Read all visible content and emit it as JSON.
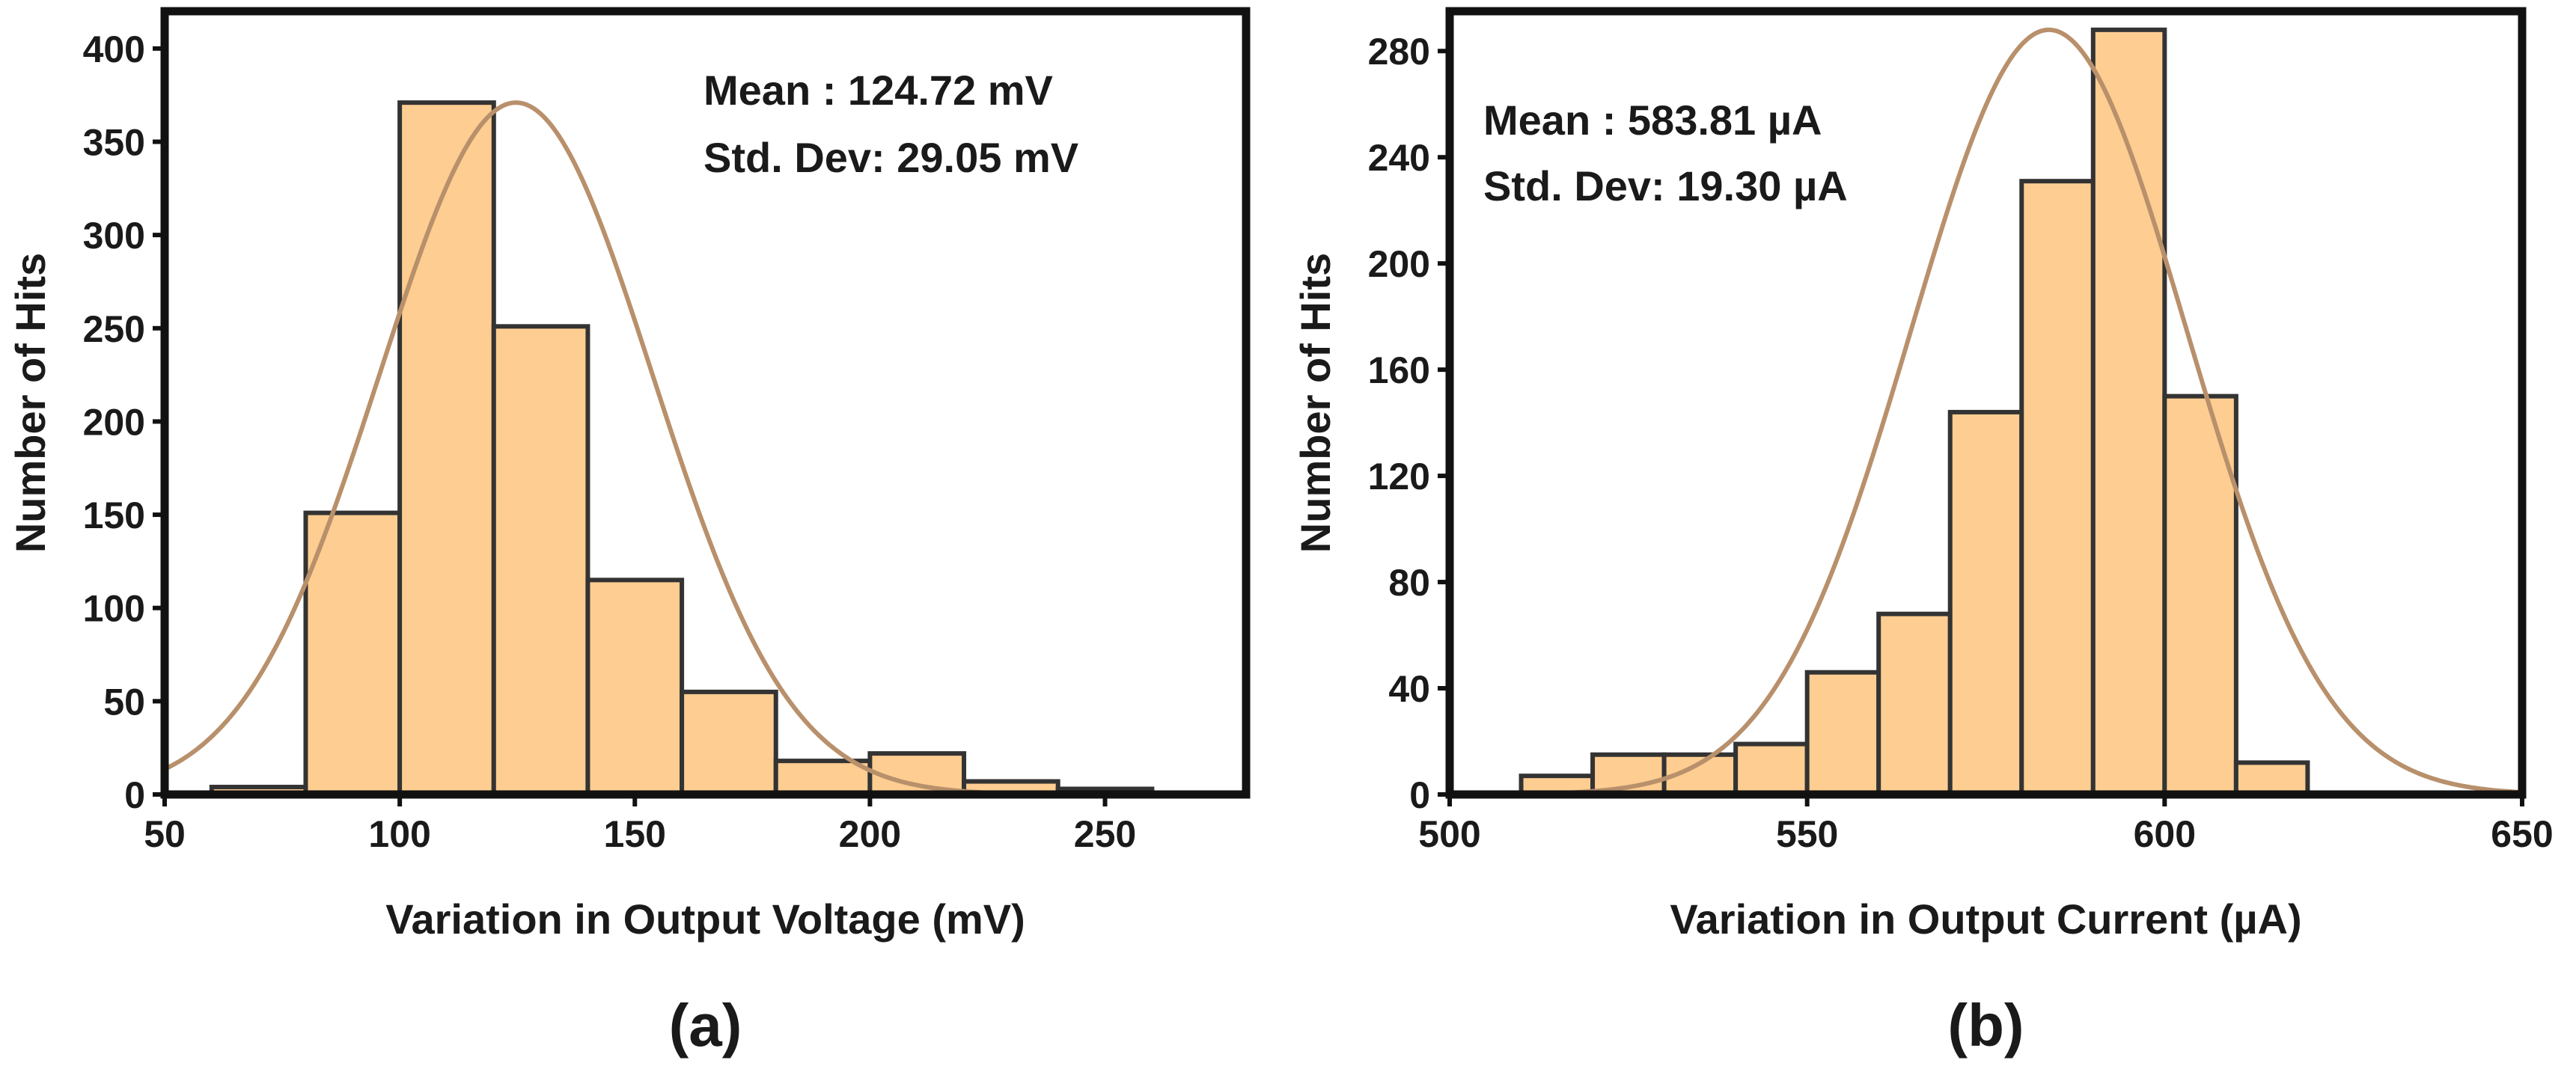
{
  "chart_data": [
    {
      "type": "histogram",
      "panel_label": "(a)",
      "xlabel": "Variation in Output Voltage (mV)",
      "ylabel": "Number of Hits",
      "xlim": [
        50,
        280
      ],
      "ylim": [
        0,
        420
      ],
      "xticks": [
        50,
        100,
        150,
        200,
        250
      ],
      "yticks": [
        0,
        50,
        100,
        150,
        200,
        250,
        300,
        350,
        400
      ],
      "bins": [
        {
          "start": 60,
          "end": 80,
          "count": 4
        },
        {
          "start": 80,
          "end": 100,
          "count": 151
        },
        {
          "start": 100,
          "end": 120,
          "count": 371
        },
        {
          "start": 120,
          "end": 140,
          "count": 251
        },
        {
          "start": 140,
          "end": 160,
          "count": 115
        },
        {
          "start": 160,
          "end": 180,
          "count": 55
        },
        {
          "start": 180,
          "end": 200,
          "count": 18
        },
        {
          "start": 200,
          "end": 220,
          "count": 22
        },
        {
          "start": 220,
          "end": 240,
          "count": 7
        },
        {
          "start": 240,
          "end": 260,
          "count": 3
        }
      ],
      "fit": {
        "type": "normal",
        "mean": 124.72,
        "std": 29.05,
        "peak": 371,
        "color": "#b8906b"
      },
      "bar_color": "#fecd91",
      "annotations": [
        "Mean : 124.72 mV",
        "Std. Dev: 29.05 mV"
      ]
    },
    {
      "type": "histogram",
      "panel_label": "(b)",
      "xlabel": "Variation in Output Current (µA)",
      "ylabel": "Number of Hits",
      "xlim": [
        500,
        650
      ],
      "ylim": [
        0,
        295
      ],
      "xticks": [
        500,
        550,
        600,
        650
      ],
      "yticks": [
        0,
        40,
        80,
        120,
        160,
        200,
        240,
        280
      ],
      "bins": [
        {
          "start": 510,
          "end": 520,
          "count": 7
        },
        {
          "start": 520,
          "end": 530,
          "count": 15
        },
        {
          "start": 530,
          "end": 540,
          "count": 15
        },
        {
          "start": 540,
          "end": 550,
          "count": 19
        },
        {
          "start": 550,
          "end": 560,
          "count": 46
        },
        {
          "start": 560,
          "end": 570,
          "count": 68
        },
        {
          "start": 570,
          "end": 580,
          "count": 144
        },
        {
          "start": 580,
          "end": 590,
          "count": 231
        },
        {
          "start": 590,
          "end": 600,
          "count": 288
        },
        {
          "start": 600,
          "end": 610,
          "count": 150
        },
        {
          "start": 610,
          "end": 620,
          "count": 12
        }
      ],
      "fit": {
        "type": "normal",
        "mean": 583.81,
        "std": 19.3,
        "peak": 288,
        "color": "#b8906b"
      },
      "bar_color": "#fecd91",
      "annotations": [
        "Mean : 583.81 µA",
        "Std. Dev: 19.30 µA"
      ]
    }
  ]
}
